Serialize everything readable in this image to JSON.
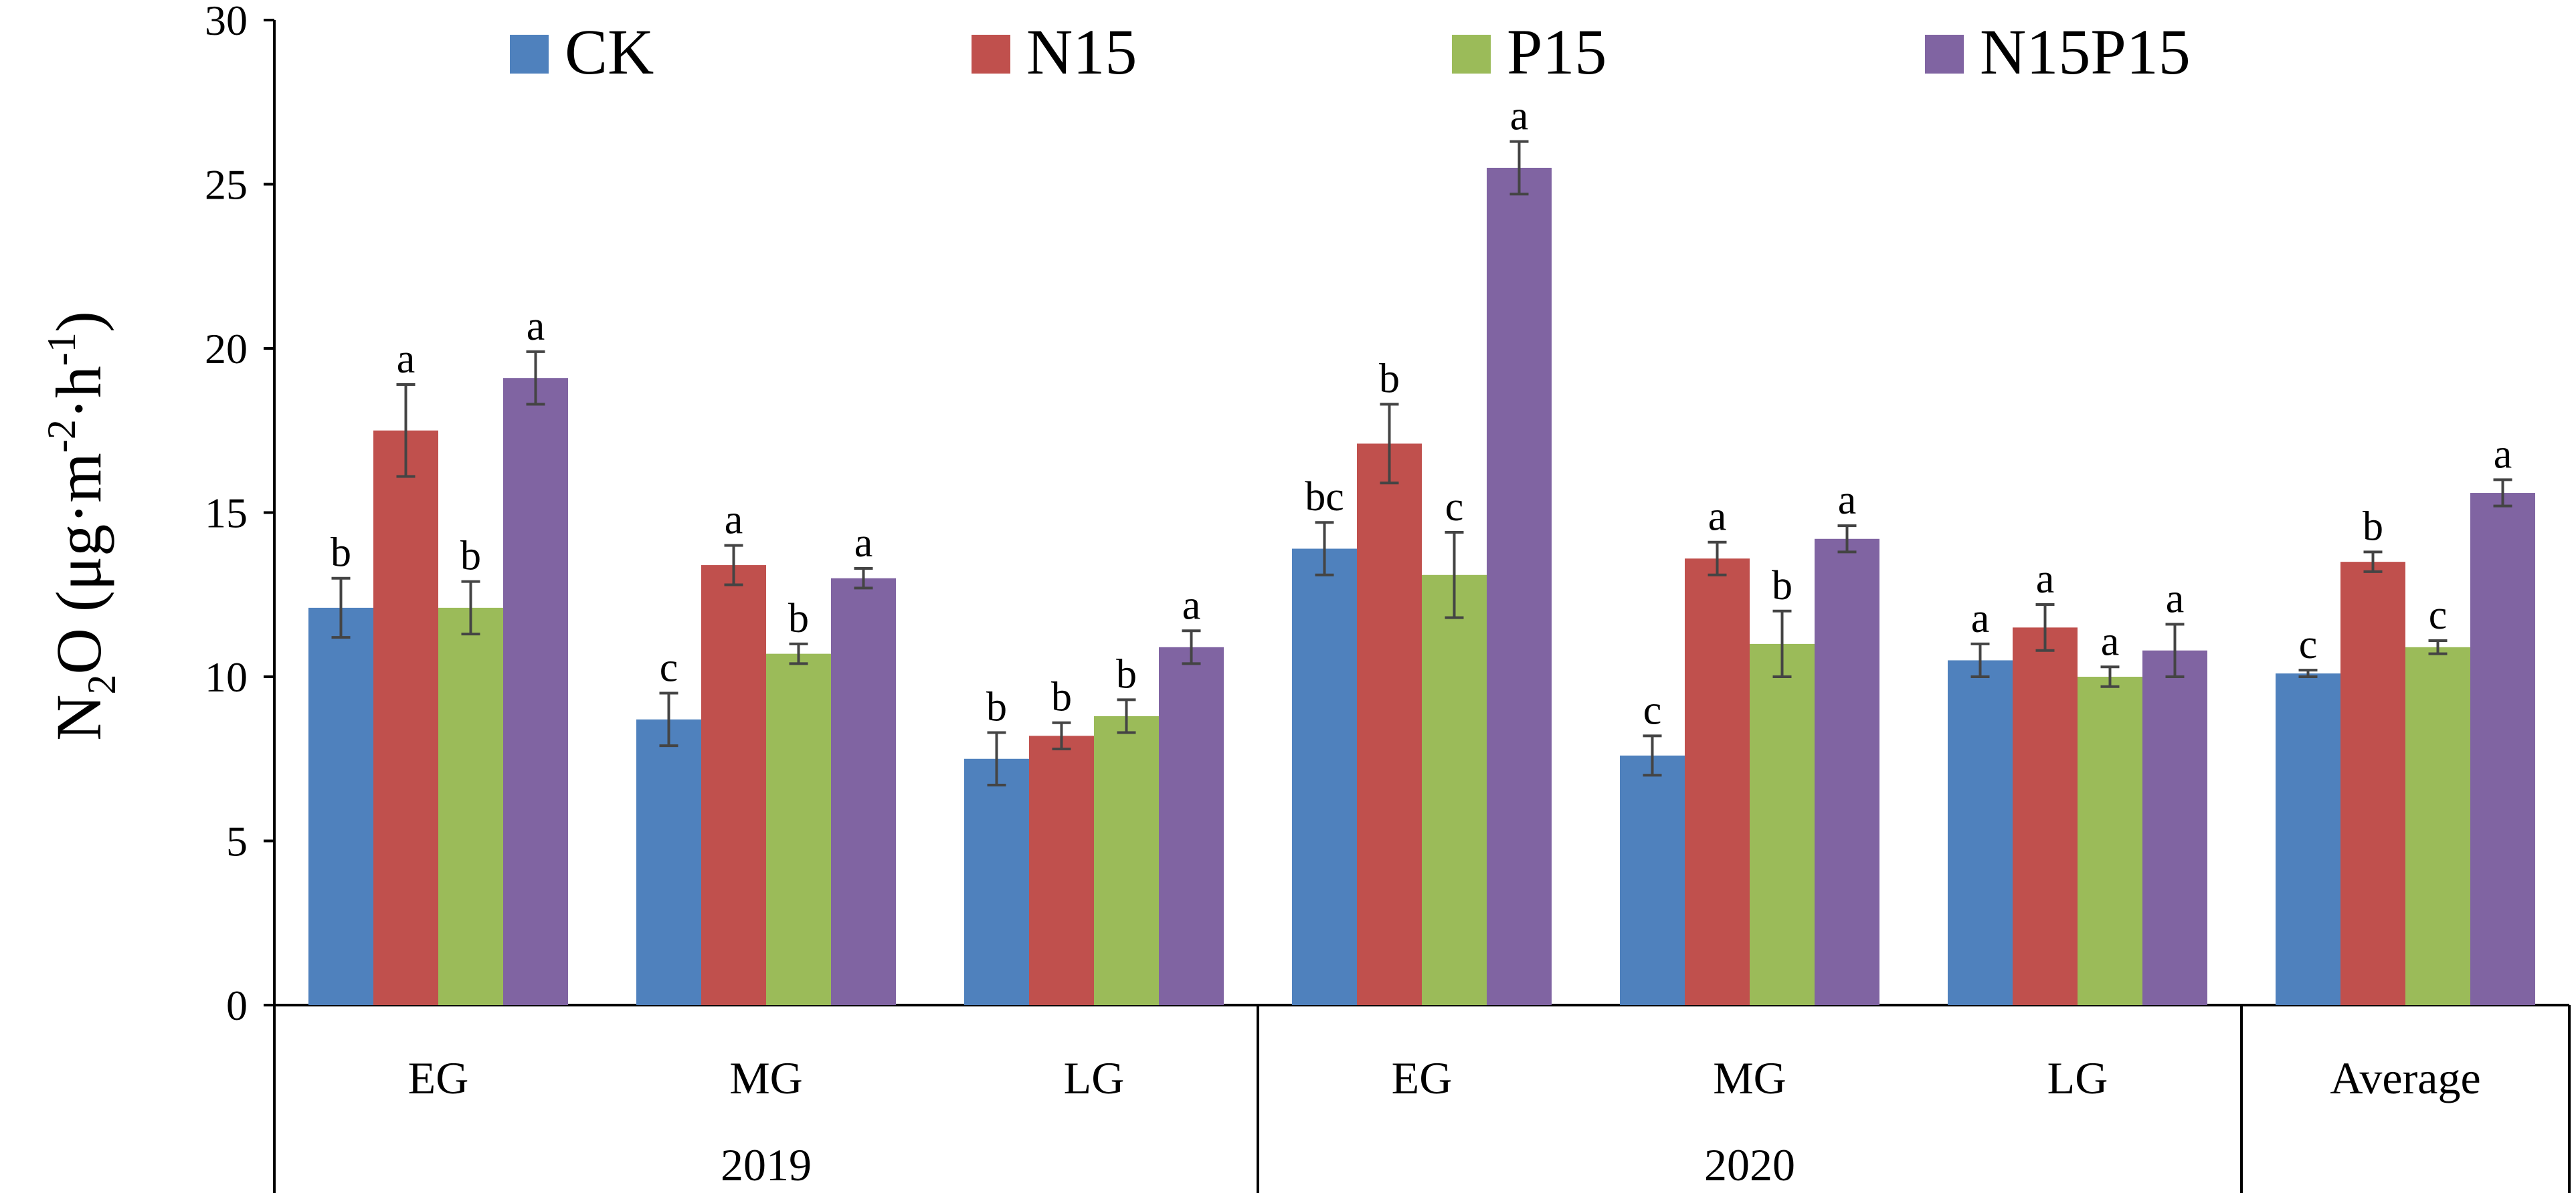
{
  "chart_data": {
    "type": "bar",
    "title": "",
    "ylabel": "N₂O (μg·m⁻²·h⁻¹)",
    "ylabel_parts": {
      "pre": "N",
      "sub": "2",
      "mid": "O (μg·m",
      "sup1": "-2",
      "mid2": "·h",
      "sup2": "-1",
      "post": ")"
    },
    "xlabel": "",
    "ylim": [
      0,
      30
    ],
    "yticks": [
      0,
      5,
      10,
      15,
      20,
      25,
      30
    ],
    "grid": false,
    "legend_position": "top",
    "categories": [
      "EG",
      "MG",
      "LG",
      "EG",
      "MG",
      "LG",
      "Average"
    ],
    "groups": [
      {
        "label": "2019",
        "span": [
          0,
          2
        ]
      },
      {
        "label": "2020",
        "span": [
          3,
          5
        ]
      }
    ],
    "series": [
      {
        "name": "CK",
        "color": "#4F81BD",
        "values": [
          12.1,
          8.7,
          7.5,
          13.9,
          7.6,
          10.5,
          10.1
        ],
        "errors": [
          0.9,
          0.8,
          0.8,
          0.8,
          0.6,
          0.5,
          0.1
        ],
        "letters": [
          "b",
          "c",
          "b",
          "bc",
          "c",
          "a",
          "c"
        ]
      },
      {
        "name": "N15",
        "color": "#C0504D",
        "values": [
          17.5,
          13.4,
          8.2,
          17.1,
          13.6,
          11.5,
          13.5
        ],
        "errors": [
          1.4,
          0.6,
          0.4,
          1.2,
          0.5,
          0.7,
          0.3
        ],
        "letters": [
          "a",
          "a",
          "b",
          "b",
          "a",
          "a",
          "b"
        ]
      },
      {
        "name": "P15",
        "color": "#9BBB59",
        "values": [
          12.1,
          10.7,
          8.8,
          13.1,
          11.0,
          10.0,
          10.9
        ],
        "errors": [
          0.8,
          0.3,
          0.5,
          1.3,
          1.0,
          0.3,
          0.2
        ],
        "letters": [
          "b",
          "b",
          "b",
          "c",
          "b",
          "a",
          "c"
        ]
      },
      {
        "name": "N15P15",
        "color": "#8064A2",
        "values": [
          19.1,
          13.0,
          10.9,
          25.5,
          14.2,
          10.8,
          15.6
        ],
        "errors": [
          0.8,
          0.3,
          0.5,
          0.8,
          0.4,
          0.8,
          0.4
        ],
        "letters": [
          "a",
          "a",
          "a",
          "a",
          "a",
          "a",
          "a"
        ]
      }
    ]
  }
}
